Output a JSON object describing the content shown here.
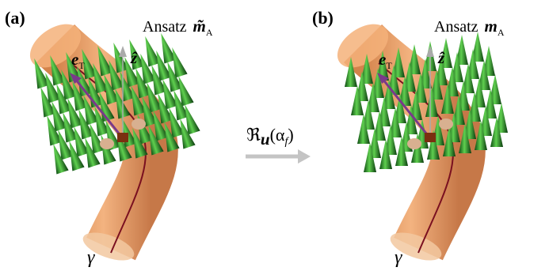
{
  "panels": [
    {
      "label": "(a)",
      "title": "Ansatz",
      "symbol": "m̃",
      "symbol_sub": "A",
      "e": "e",
      "e_sub": "T",
      "z": "ẑ",
      "gamma": "γ"
    },
    {
      "label": "(b)",
      "title": "Ansatz",
      "symbol": "m",
      "symbol_sub": "A",
      "e": "e",
      "e_sub": "T",
      "z": "ẑ",
      "gamma": "γ"
    }
  ],
  "transform": {
    "symbol": "ℜ",
    "sub": "u",
    "arg_open": "(α",
    "arg_sub": "f",
    "arg_close": ")"
  }
}
